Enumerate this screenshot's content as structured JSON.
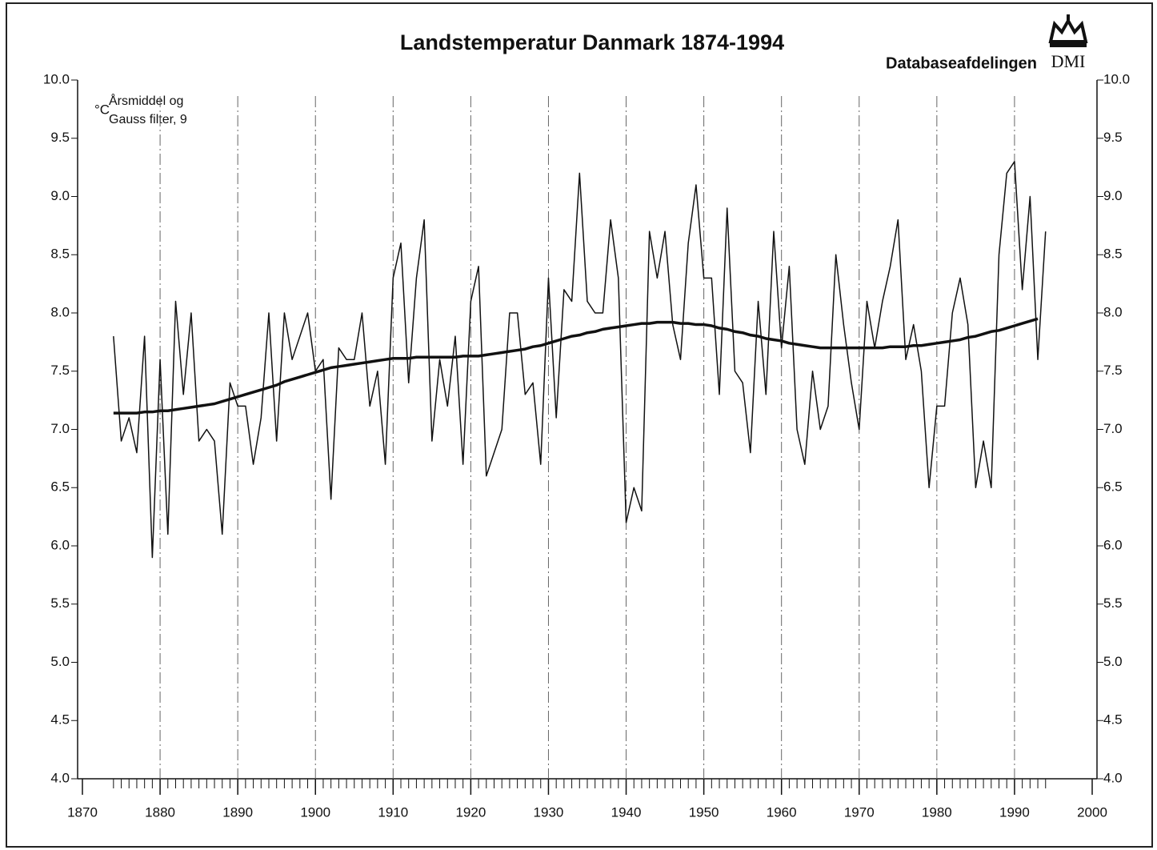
{
  "chart_data": {
    "type": "line",
    "title": "Landstemperatur Danmark 1874-1994",
    "source": "Databaseafdelingen",
    "logo": "DMI",
    "y_label": "°C",
    "annotation": [
      "Årsmiddel og",
      "Gauss filter, 9"
    ],
    "x": [
      1874,
      1875,
      1876,
      1877,
      1878,
      1879,
      1880,
      1881,
      1882,
      1883,
      1884,
      1885,
      1886,
      1887,
      1888,
      1889,
      1890,
      1891,
      1892,
      1893,
      1894,
      1895,
      1896,
      1897,
      1898,
      1899,
      1900,
      1901,
      1902,
      1903,
      1904,
      1905,
      1906,
      1907,
      1908,
      1909,
      1910,
      1911,
      1912,
      1913,
      1914,
      1915,
      1916,
      1917,
      1918,
      1919,
      1920,
      1921,
      1922,
      1923,
      1924,
      1925,
      1926,
      1927,
      1928,
      1929,
      1930,
      1931,
      1932,
      1933,
      1934,
      1935,
      1936,
      1937,
      1938,
      1939,
      1940,
      1941,
      1942,
      1943,
      1944,
      1945,
      1946,
      1947,
      1948,
      1949,
      1950,
      1951,
      1952,
      1953,
      1954,
      1955,
      1956,
      1957,
      1958,
      1959,
      1960,
      1961,
      1962,
      1963,
      1964,
      1965,
      1966,
      1967,
      1968,
      1969,
      1970,
      1971,
      1972,
      1973,
      1974,
      1975,
      1976,
      1977,
      1978,
      1979,
      1980,
      1981,
      1982,
      1983,
      1984,
      1985,
      1986,
      1987,
      1988,
      1989,
      1990,
      1991,
      1992,
      1993,
      1994
    ],
    "series": [
      {
        "color": "#111111",
        "width": 1.5,
        "values": [
          7.8,
          6.9,
          7.1,
          6.8,
          7.8,
          5.9,
          7.6,
          6.1,
          8.1,
          7.3,
          8.0,
          6.9,
          7.0,
          6.9,
          6.1,
          7.4,
          7.2,
          7.2,
          6.7,
          7.1,
          8.0,
          6.9,
          8.0,
          7.6,
          7.8,
          8.0,
          7.5,
          7.6,
          6.4,
          7.7,
          7.6,
          7.6,
          8.0,
          7.2,
          7.5,
          6.7,
          8.3,
          8.6,
          7.4,
          8.3,
          8.8,
          6.9,
          7.6,
          7.2,
          7.8,
          6.7,
          8.1,
          8.4,
          6.6,
          6.8,
          7.0,
          8.0,
          8.0,
          7.3,
          7.4,
          6.7,
          8.3,
          7.1,
          8.2,
          8.1,
          9.2,
          8.1,
          8.0,
          8.0,
          8.8,
          8.3,
          6.2,
          6.5,
          6.3,
          8.7,
          8.3,
          8.7,
          7.9,
          7.6,
          8.6,
          9.1,
          8.3,
          8.3,
          7.3,
          8.9,
          7.5,
          7.4,
          6.8,
          8.1,
          7.3,
          8.7,
          7.7,
          8.4,
          7.0,
          6.7,
          7.5,
          7.0,
          7.2,
          8.5,
          7.9,
          7.4,
          7.0,
          8.1,
          7.7,
          8.1,
          8.4,
          8.8,
          7.6,
          7.9,
          7.5,
          6.5,
          7.2,
          7.2,
          8.0,
          8.3,
          7.9,
          6.5,
          6.9,
          6.5,
          8.5,
          9.2,
          9.3,
          8.2,
          9.0,
          7.6,
          8.7
        ]
      },
      {
        "color": "#111111",
        "width": 3.5,
        "values": [
          7.14,
          7.14,
          7.14,
          7.14,
          7.15,
          7.15,
          7.16,
          7.16,
          7.17,
          7.18,
          7.19,
          7.2,
          7.21,
          7.22,
          7.24,
          7.26,
          7.28,
          7.3,
          7.32,
          7.34,
          7.36,
          7.38,
          7.41,
          7.43,
          7.45,
          7.47,
          7.49,
          7.51,
          7.53,
          7.54,
          7.55,
          7.56,
          7.57,
          7.58,
          7.59,
          7.6,
          7.61,
          7.61,
          7.61,
          7.62,
          7.62,
          7.62,
          7.62,
          7.62,
          7.62,
          7.63,
          7.63,
          7.63,
          7.64,
          7.65,
          7.66,
          7.67,
          7.68,
          7.69,
          7.71,
          7.72,
          7.74,
          7.76,
          7.78,
          7.8,
          7.81,
          7.83,
          7.84,
          7.86,
          7.87,
          7.88,
          7.89,
          7.9,
          7.91,
          7.91,
          7.92,
          7.92,
          7.92,
          7.91,
          7.91,
          7.9,
          7.9,
          7.89,
          7.87,
          7.86,
          7.84,
          7.83,
          7.81,
          7.8,
          7.78,
          7.77,
          7.76,
          7.74,
          7.73,
          7.72,
          7.71,
          7.7,
          7.7,
          7.7,
          7.7,
          7.7,
          7.7,
          7.7,
          7.7,
          7.7,
          7.71,
          7.71,
          7.71,
          7.72,
          7.72,
          7.73,
          7.74,
          7.75,
          7.76,
          7.77,
          7.79,
          7.8,
          7.82,
          7.84,
          7.85,
          7.87,
          7.89,
          7.91,
          7.93,
          7.95,
          null
        ]
      }
    ],
    "xlim": [
      1870,
      2000
    ],
    "xticks": [
      1870,
      1880,
      1890,
      1900,
      1910,
      1920,
      1930,
      1940,
      1950,
      1960,
      1970,
      1980,
      1990,
      2000
    ],
    "ylim": [
      4.0,
      10.0
    ],
    "yticks": [
      {
        "value": 4.0,
        "label": "4.0"
      },
      {
        "value": 4.5,
        "label": "4.5"
      },
      {
        "value": 5.0,
        "label": "5.0"
      },
      {
        "value": 5.5,
        "label": "5.5"
      },
      {
        "value": 6.0,
        "label": "6.0"
      },
      {
        "value": 6.5,
        "label": "6.5"
      },
      {
        "value": 7.0,
        "label": "7.0"
      },
      {
        "value": 7.5,
        "label": "7.5"
      },
      {
        "value": 8.0,
        "label": "8.0"
      },
      {
        "value": 8.5,
        "label": "8.5"
      },
      {
        "value": 9.0,
        "label": "9.0"
      },
      {
        "value": 9.5,
        "label": "9.5"
      },
      {
        "value": 10.0,
        "label": "10.0"
      }
    ],
    "grid": true
  }
}
